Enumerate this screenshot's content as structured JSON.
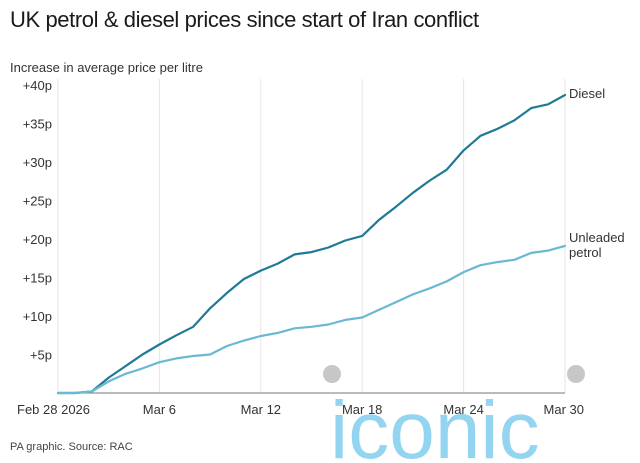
{
  "header": {
    "title": "UK petrol & diesel prices since start of Iran conflict",
    "subtitle": "Increase in average price per litre"
  },
  "footer": {
    "source": "PA graphic. Source: RAC"
  },
  "watermark": {
    "text": "iconic",
    "color": "#3bb0e4",
    "dot_color": "#bdbdbd"
  },
  "colors": {
    "diesel": "#1f7a96",
    "petrol": "#6ab8d2",
    "grid": "#e6e6e6",
    "axis": "#777777"
  },
  "chart_data": {
    "type": "line",
    "title": "UK petrol & diesel prices since start of Iran conflict",
    "ylabel": "Increase in average price per litre",
    "x": [
      "2026-02-28",
      "2026-03-01",
      "2026-03-02",
      "2026-03-03",
      "2026-03-04",
      "2026-03-05",
      "2026-03-06",
      "2026-03-07",
      "2026-03-08",
      "2026-03-09",
      "2026-03-10",
      "2026-03-11",
      "2026-03-12",
      "2026-03-13",
      "2026-03-14",
      "2026-03-15",
      "2026-03-16",
      "2026-03-17",
      "2026-03-18",
      "2026-03-19",
      "2026-03-20",
      "2026-03-21",
      "2026-03-22",
      "2026-03-23",
      "2026-03-24",
      "2026-03-25",
      "2026-03-26",
      "2026-03-27",
      "2026-03-28",
      "2026-03-29",
      "2026-03-30"
    ],
    "x_tick_labels": [
      "Feb 28 2026",
      "Mar 6",
      "Mar 12",
      "Mar 18",
      "Mar 24",
      "Mar 30"
    ],
    "x_tick_dates": [
      "2026-02-28",
      "2026-03-06",
      "2026-03-12",
      "2026-03-18",
      "2026-03-24",
      "2026-03-30"
    ],
    "y_ticks": [
      5,
      10,
      15,
      20,
      25,
      30,
      35,
      40
    ],
    "y_tick_labels": [
      "+5p",
      "+10p",
      "+15p",
      "+20p",
      "+25p",
      "+30p",
      "+35p",
      "+40p"
    ],
    "ylim": [
      0,
      40
    ],
    "grid": "vertical",
    "legend": "end-of-line labels",
    "series": [
      {
        "name": "Diesel",
        "values": [
          0,
          0,
          0.2,
          2,
          3.5,
          5,
          6.3,
          7.5,
          8.6,
          11,
          13,
          14.8,
          15.9,
          16.8,
          18,
          18.3,
          18.9,
          19.8,
          20.4,
          22.5,
          24.2,
          26,
          27.6,
          29,
          31.5,
          33.4,
          34.3,
          35.4,
          37,
          37.5,
          38.7
        ]
      },
      {
        "name": "Unleaded petrol",
        "values": [
          0,
          0,
          0.2,
          1.5,
          2.5,
          3.2,
          4,
          4.5,
          4.8,
          5,
          6.1,
          6.8,
          7.4,
          7.8,
          8.4,
          8.6,
          8.9,
          9.5,
          9.8,
          10.8,
          11.8,
          12.8,
          13.6,
          14.5,
          15.7,
          16.6,
          17,
          17.3,
          18.2,
          18.5,
          19.1
        ]
      }
    ]
  }
}
